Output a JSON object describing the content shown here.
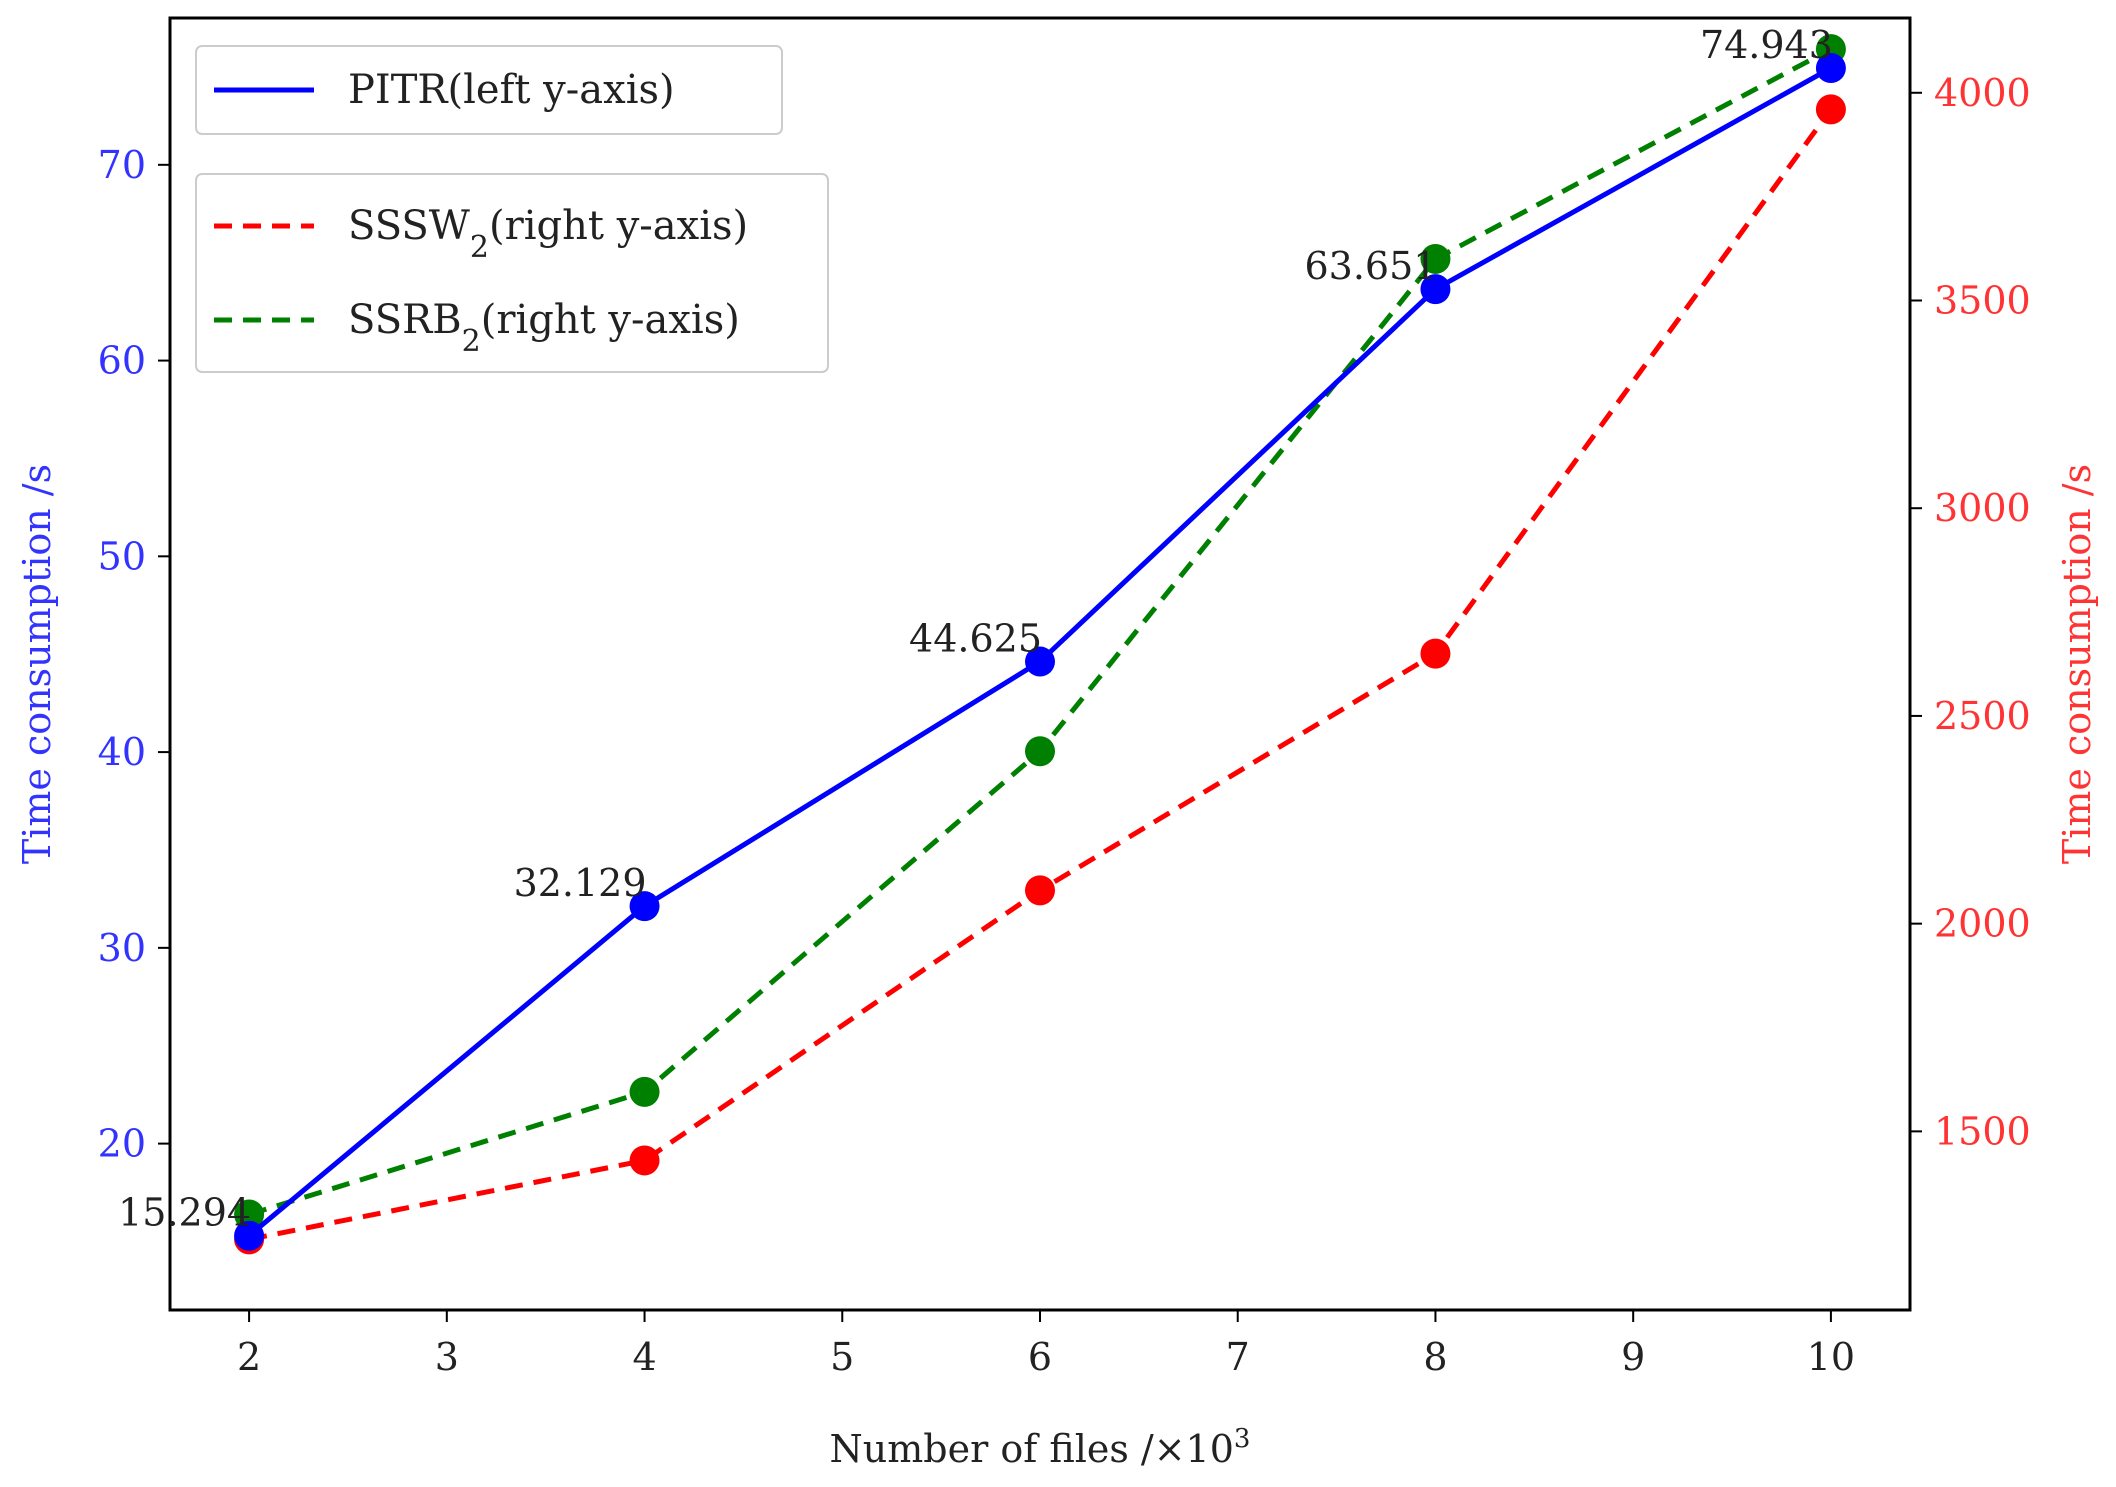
{
  "chart_data": {
    "type": "line",
    "x": [
      2,
      4,
      6,
      8,
      10
    ],
    "xticks": [
      "2",
      "3",
      "4",
      "5",
      "6",
      "7",
      "8",
      "9",
      "10"
    ],
    "xlabel_main": "Number of files /×10",
    "xlabel_exp": "3",
    "xlim": [
      1.6,
      10.4
    ],
    "left_axis": {
      "label": "Time consumption /s",
      "color": "#3333ff",
      "ticks": [
        "20",
        "30",
        "40",
        "50",
        "60",
        "70"
      ],
      "ylim": [
        11.5,
        77.5
      ]
    },
    "right_axis": {
      "label": "Time consumption /s",
      "color": "#ff3333",
      "ticks": [
        "1500",
        "2000",
        "2500",
        "3000",
        "3500",
        "4000"
      ],
      "ylim": [
        1070,
        4180
      ]
    },
    "series": [
      {
        "name": "PITR(left y-axis)",
        "axis": "left",
        "color": "#0000ff",
        "style": "solid",
        "values": [
          15.294,
          32.129,
          44.625,
          63.651,
          74.943
        ],
        "labels": [
          "15.294",
          "32.129",
          "44.625",
          "63.651",
          "74.943"
        ]
      },
      {
        "name_main": "SSSW",
        "name_sub": "2",
        "name_rest": "(right y-axis)",
        "axis": "right",
        "color": "#ff0000",
        "style": "dashed",
        "values": [
          1240,
          1430,
          2080,
          2650,
          3960
        ]
      },
      {
        "name_main": "SSRB",
        "name_sub": "2",
        "name_rest": "(right y-axis)",
        "axis": "right",
        "color": "#008000",
        "style": "dashed",
        "values": [
          1300,
          1595,
          2415,
          3600,
          4105
        ]
      }
    ],
    "legend_placement": "top-left",
    "grid": false
  }
}
